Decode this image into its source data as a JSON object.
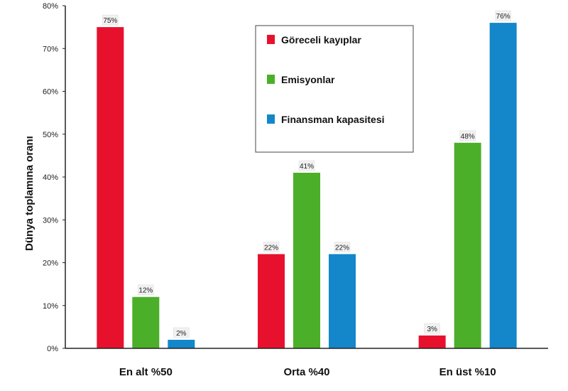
{
  "chart_data": {
    "type": "bar",
    "ylabel": "Dünya toplamına oranı",
    "ylim": [
      0,
      80
    ],
    "yticks": [
      "0%",
      "10%",
      "20%",
      "30%",
      "40%",
      "50%",
      "60%",
      "70%",
      "80%"
    ],
    "categories": [
      "En alt %50",
      "Orta %40",
      "En üst %10"
    ],
    "grid": false,
    "legend_position": "top-center",
    "series": [
      {
        "name": "Göreceli kayıplar",
        "color": "#e8112d",
        "values": [
          75,
          22,
          3
        ],
        "labels": [
          "75%",
          "22%",
          "3%"
        ]
      },
      {
        "name": "Emisyonlar",
        "color": "#4caf2a",
        "values": [
          12,
          41,
          48
        ],
        "labels": [
          "12%",
          "41%",
          "48%"
        ]
      },
      {
        "name": "Finansman kapasitesi",
        "color": "#1387c9",
        "values": [
          2,
          22,
          76
        ],
        "labels": [
          "2%",
          "22%",
          "76%"
        ]
      }
    ]
  }
}
